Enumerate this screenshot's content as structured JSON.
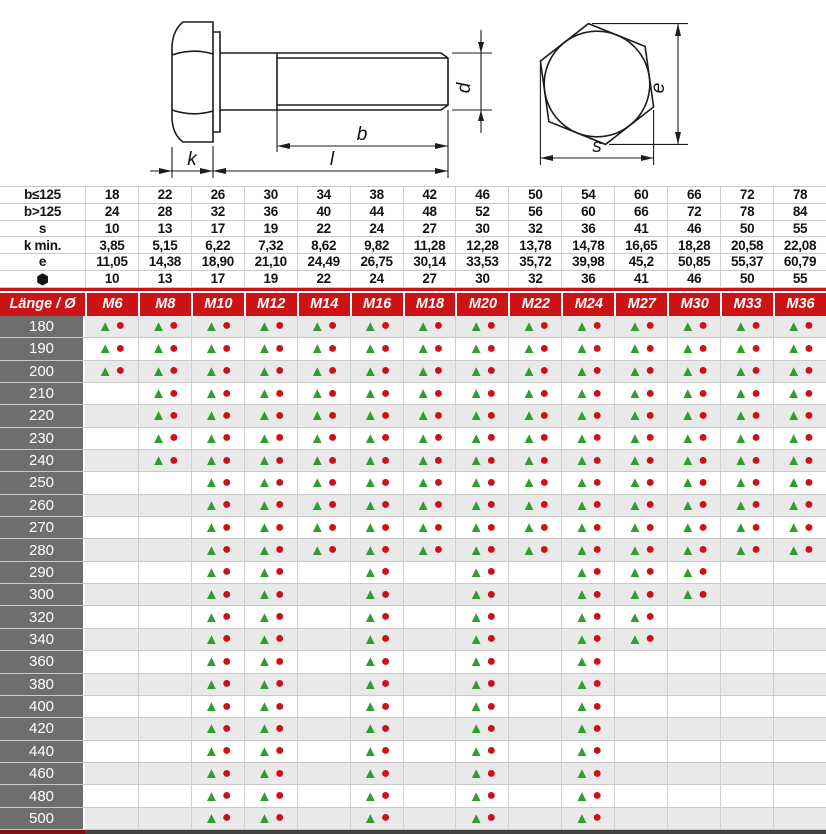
{
  "colors": {
    "red": "#cc1417",
    "green": "#2f9e2f",
    "marker_red": "#cc1118",
    "label_gray": "#6e6e6e",
    "row_alt": "#e9e9e9"
  },
  "drawing": {
    "labels": {
      "k": "k",
      "l": "l",
      "b": "b",
      "d": "d",
      "e": "e",
      "s": "s"
    }
  },
  "markers": {
    "triangle": "▲",
    "circle": "●"
  },
  "dim_table": {
    "rows": [
      {
        "label": "b≤125",
        "hex_icon": false,
        "values": [
          "18",
          "22",
          "26",
          "30",
          "34",
          "38",
          "42",
          "46",
          "50",
          "54",
          "60",
          "66",
          "72",
          "78"
        ]
      },
      {
        "label": "b>125",
        "hex_icon": false,
        "values": [
          "24",
          "28",
          "32",
          "36",
          "40",
          "44",
          "48",
          "52",
          "56",
          "60",
          "66",
          "72",
          "78",
          "84"
        ]
      },
      {
        "label": "s",
        "hex_icon": false,
        "values": [
          "10",
          "13",
          "17",
          "19",
          "22",
          "24",
          "27",
          "30",
          "32",
          "36",
          "41",
          "46",
          "50",
          "55"
        ]
      },
      {
        "label": "k min.",
        "hex_icon": false,
        "values": [
          "3,85",
          "5,15",
          "6,22",
          "7,32",
          "8,62",
          "9,82",
          "11,28",
          "12,28",
          "13,78",
          "14,78",
          "16,65",
          "18,28",
          "20,58",
          "22,08"
        ]
      },
      {
        "label": "e",
        "hex_icon": false,
        "values": [
          "11,05",
          "14,38",
          "18,90",
          "21,10",
          "24,49",
          "26,75",
          "30,14",
          "33,53",
          "35,72",
          "39,98",
          "45,2",
          "50,85",
          "55,37",
          "60,79"
        ]
      },
      {
        "label": "⬢",
        "hex_icon": true,
        "values": [
          "10",
          "13",
          "17",
          "19",
          "22",
          "24",
          "27",
          "30",
          "32",
          "36",
          "41",
          "46",
          "50",
          "55"
        ]
      }
    ]
  },
  "main_table": {
    "corner_label": "Länge / Ø",
    "sizes": [
      "M6",
      "M8",
      "M10",
      "M12",
      "M14",
      "M16",
      "M18",
      "M20",
      "M22",
      "M24",
      "M27",
      "M30",
      "M33",
      "M36"
    ],
    "rows": [
      {
        "length": "180",
        "available": [
          1,
          1,
          1,
          1,
          1,
          1,
          1,
          1,
          1,
          1,
          1,
          1,
          1,
          1
        ]
      },
      {
        "length": "190",
        "available": [
          1,
          1,
          1,
          1,
          1,
          1,
          1,
          1,
          1,
          1,
          1,
          1,
          1,
          1
        ]
      },
      {
        "length": "200",
        "available": [
          1,
          1,
          1,
          1,
          1,
          1,
          1,
          1,
          1,
          1,
          1,
          1,
          1,
          1
        ]
      },
      {
        "length": "210",
        "available": [
          0,
          1,
          1,
          1,
          1,
          1,
          1,
          1,
          1,
          1,
          1,
          1,
          1,
          1
        ]
      },
      {
        "length": "220",
        "available": [
          0,
          1,
          1,
          1,
          1,
          1,
          1,
          1,
          1,
          1,
          1,
          1,
          1,
          1
        ]
      },
      {
        "length": "230",
        "available": [
          0,
          1,
          1,
          1,
          1,
          1,
          1,
          1,
          1,
          1,
          1,
          1,
          1,
          1
        ]
      },
      {
        "length": "240",
        "available": [
          0,
          1,
          1,
          1,
          1,
          1,
          1,
          1,
          1,
          1,
          1,
          1,
          1,
          1
        ]
      },
      {
        "length": "250",
        "available": [
          0,
          0,
          1,
          1,
          1,
          1,
          1,
          1,
          1,
          1,
          1,
          1,
          1,
          1
        ]
      },
      {
        "length": "260",
        "available": [
          0,
          0,
          1,
          1,
          1,
          1,
          1,
          1,
          1,
          1,
          1,
          1,
          1,
          1
        ]
      },
      {
        "length": "270",
        "available": [
          0,
          0,
          1,
          1,
          1,
          1,
          1,
          1,
          1,
          1,
          1,
          1,
          1,
          1
        ]
      },
      {
        "length": "280",
        "available": [
          0,
          0,
          1,
          1,
          1,
          1,
          1,
          1,
          1,
          1,
          1,
          1,
          1,
          1
        ]
      },
      {
        "length": "290",
        "available": [
          0,
          0,
          1,
          1,
          0,
          1,
          0,
          1,
          0,
          1,
          1,
          1,
          0,
          0
        ]
      },
      {
        "length": "300",
        "available": [
          0,
          0,
          1,
          1,
          0,
          1,
          0,
          1,
          0,
          1,
          1,
          1,
          0,
          0
        ]
      },
      {
        "length": "320",
        "available": [
          0,
          0,
          1,
          1,
          0,
          1,
          0,
          1,
          0,
          1,
          1,
          0,
          0,
          0
        ]
      },
      {
        "length": "340",
        "available": [
          0,
          0,
          1,
          1,
          0,
          1,
          0,
          1,
          0,
          1,
          1,
          0,
          0,
          0
        ]
      },
      {
        "length": "360",
        "available": [
          0,
          0,
          1,
          1,
          0,
          1,
          0,
          1,
          0,
          1,
          0,
          0,
          0,
          0
        ]
      },
      {
        "length": "380",
        "available": [
          0,
          0,
          1,
          1,
          0,
          1,
          0,
          1,
          0,
          1,
          0,
          0,
          0,
          0
        ]
      },
      {
        "length": "400",
        "available": [
          0,
          0,
          1,
          1,
          0,
          1,
          0,
          1,
          0,
          1,
          0,
          0,
          0,
          0
        ]
      },
      {
        "length": "420",
        "available": [
          0,
          0,
          1,
          1,
          0,
          1,
          0,
          1,
          0,
          1,
          0,
          0,
          0,
          0
        ]
      },
      {
        "length": "440",
        "available": [
          0,
          0,
          1,
          1,
          0,
          1,
          0,
          1,
          0,
          1,
          0,
          0,
          0,
          0
        ]
      },
      {
        "length": "460",
        "available": [
          0,
          0,
          1,
          1,
          0,
          1,
          0,
          1,
          0,
          1,
          0,
          0,
          0,
          0
        ]
      },
      {
        "length": "480",
        "available": [
          0,
          0,
          1,
          1,
          0,
          1,
          0,
          1,
          0,
          1,
          0,
          0,
          0,
          0
        ]
      },
      {
        "length": "500",
        "available": [
          0,
          0,
          1,
          1,
          0,
          1,
          0,
          1,
          0,
          1,
          0,
          0,
          0,
          0
        ]
      }
    ]
  }
}
